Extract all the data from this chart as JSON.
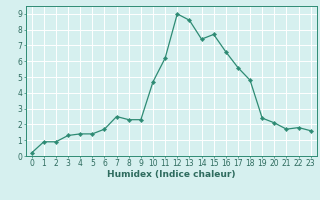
{
  "x": [
    0,
    1,
    2,
    3,
    4,
    5,
    6,
    7,
    8,
    9,
    10,
    11,
    12,
    13,
    14,
    15,
    16,
    17,
    18,
    19,
    20,
    21,
    22,
    23
  ],
  "y": [
    0.2,
    0.9,
    0.9,
    1.3,
    1.4,
    1.4,
    1.7,
    2.5,
    2.3,
    2.3,
    4.7,
    6.2,
    9.0,
    8.6,
    7.4,
    7.7,
    6.6,
    5.6,
    4.8,
    2.4,
    2.1,
    1.7,
    1.8,
    1.6
  ],
  "line_color": "#2e8b74",
  "marker": "D",
  "marker_size": 2.2,
  "bg_color": "#d6f0ef",
  "grid_color": "#ffffff",
  "xlabel": "Humidex (Indice chaleur)",
  "xlim": [
    -0.5,
    23.5
  ],
  "ylim": [
    0,
    9.5
  ],
  "xticks": [
    0,
    1,
    2,
    3,
    4,
    5,
    6,
    7,
    8,
    9,
    10,
    11,
    12,
    13,
    14,
    15,
    16,
    17,
    18,
    19,
    20,
    21,
    22,
    23
  ],
  "yticks": [
    0,
    1,
    2,
    3,
    4,
    5,
    6,
    7,
    8,
    9
  ],
  "tick_label_color": "#2e6b5e",
  "axis_color": "#2e8b74",
  "xlabel_fontsize": 6.5,
  "tick_fontsize": 5.5,
  "line_width": 0.9
}
